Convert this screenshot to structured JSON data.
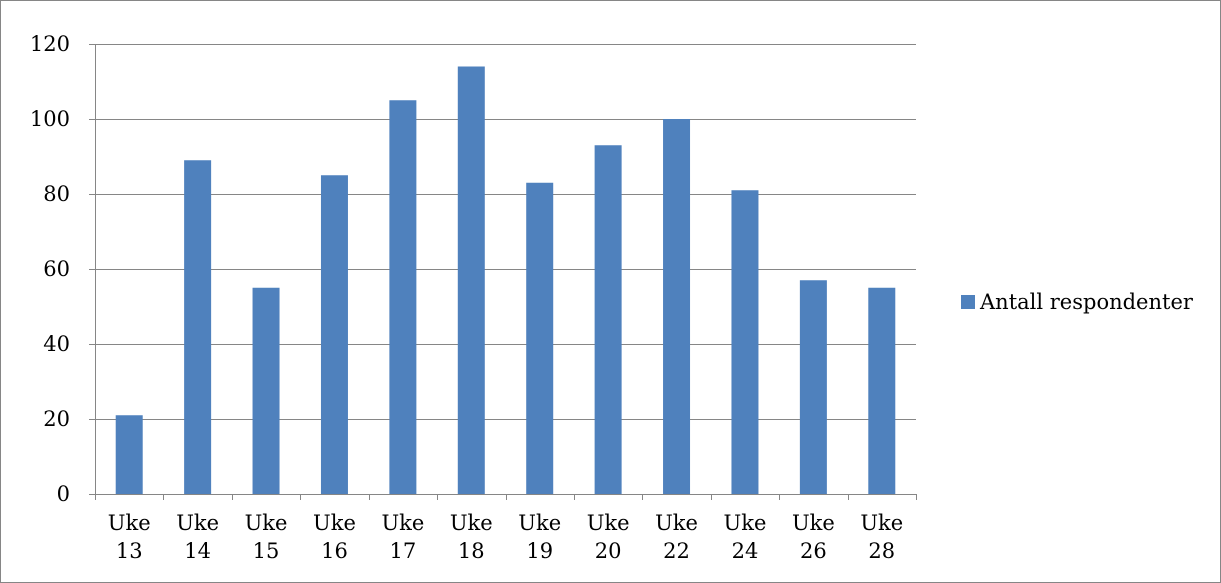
{
  "chart_data": {
    "type": "bar",
    "categories": [
      [
        "Uke",
        "13"
      ],
      [
        "Uke",
        "14"
      ],
      [
        "Uke",
        "15"
      ],
      [
        "Uke",
        "16"
      ],
      [
        "Uke",
        "17"
      ],
      [
        "Uke",
        "18"
      ],
      [
        "Uke",
        "19"
      ],
      [
        "Uke",
        "20"
      ],
      [
        "Uke",
        "22"
      ],
      [
        "Uke",
        "24"
      ],
      [
        "Uke",
        "26"
      ],
      [
        "Uke",
        "28"
      ]
    ],
    "series": [
      {
        "name": "Antall respondenter",
        "values": [
          21,
          89,
          55,
          85,
          105,
          114,
          83,
          93,
          100,
          81,
          57,
          55
        ],
        "color": "#4F81BD"
      }
    ],
    "yticks": [
      "0",
      "20",
      "40",
      "60",
      "80",
      "100",
      "120"
    ],
    "ylim": [
      0,
      120
    ],
    "grid": true,
    "legend_position": "right",
    "gridline_color": "#868686",
    "axis_color": "#868686"
  }
}
